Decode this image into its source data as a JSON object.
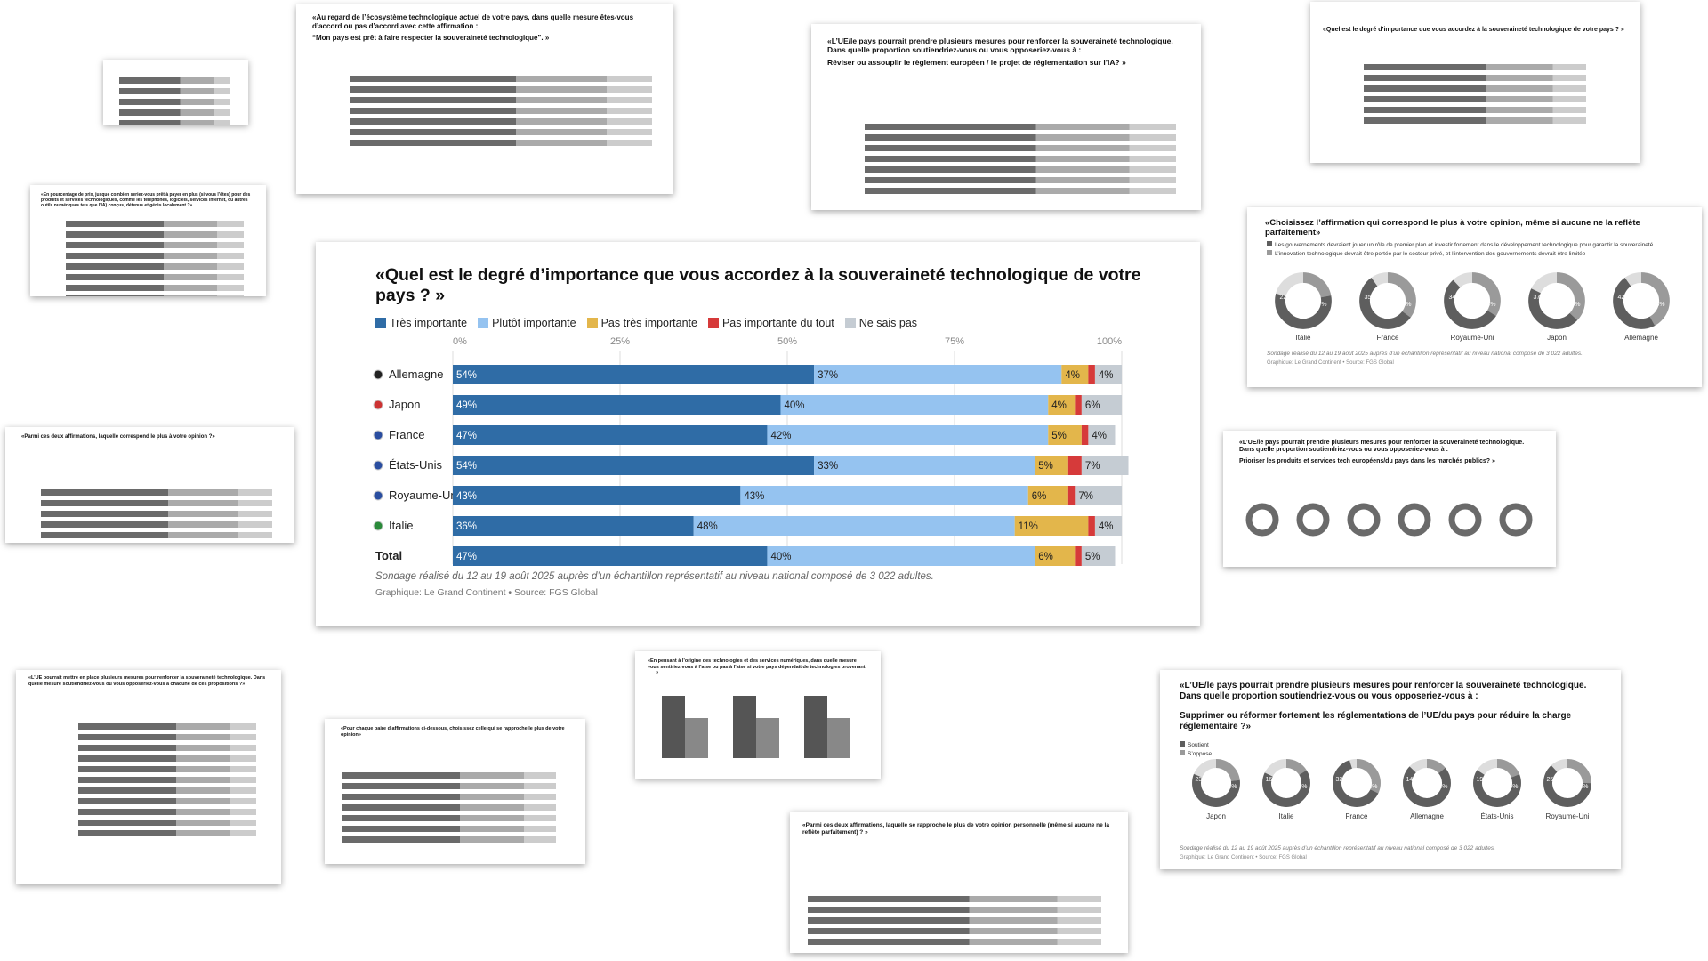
{
  "chart_data": {
    "type": "bar",
    "orientation": "horizontal",
    "stacked": true,
    "title": "«Quel est le degré d’importance que vous accordez à la souveraineté technologique de votre pays ? »",
    "categories": [
      "Allemagne",
      "Japon",
      "France",
      "États-Unis",
      "Royaume-Uni",
      "Italie",
      "Total"
    ],
    "series": [
      {
        "name": "Très importante",
        "color": "#2f6ca6",
        "values": [
          54,
          49,
          47,
          54,
          43,
          36,
          47
        ],
        "value_labels": [
          "54%",
          "49%",
          "47%",
          "54%",
          "43%",
          "36%",
          "47%"
        ]
      },
      {
        "name": "Plutôt importante",
        "color": "#95c3f0",
        "values": [
          37,
          40,
          42,
          33,
          43,
          48,
          40
        ],
        "value_labels": [
          "37%",
          "40%",
          "42%",
          "33%",
          "43%",
          "48%",
          "40%"
        ]
      },
      {
        "name": "Pas très importante",
        "color": "#e3b64b",
        "values": [
          4,
          4,
          5,
          5,
          6,
          11,
          6
        ],
        "value_labels": [
          "4%",
          "4%",
          "5%",
          "5%",
          "6%",
          "11%",
          "6%"
        ]
      },
      {
        "name": "Pas importante du tout",
        "color": "#d63a3a",
        "values": [
          1,
          1,
          1,
          2,
          1,
          1,
          1
        ]
      },
      {
        "name": "Ne sais pas",
        "color": "#c5ccd3",
        "values": [
          4,
          6,
          4,
          7,
          7,
          4,
          5
        ],
        "value_labels": [
          "4%",
          "6%",
          "4%",
          "7%",
          "7%",
          "4%",
          "5%"
        ]
      }
    ],
    "xlim": [
      0,
      100
    ],
    "xticks": [
      {
        "value": 0,
        "label": "0%"
      },
      {
        "value": 25,
        "label": "25%"
      },
      {
        "value": 50,
        "label": "50%"
      },
      {
        "value": 75,
        "label": "75%"
      },
      {
        "value": 100,
        "label": "100%"
      }
    ],
    "grid": true,
    "note": "Sondage réalisé du 12 au 19 août 2025 auprès d’un échantillon représentatif au niveau national composé de 3 022 adultes.",
    "source": "Graphique: Le Grand Continent • Source: FGS Global"
  },
  "cards": [
    {
      "title": "«Au regard de l’écosystème technologique actuel de votre pays, dans quelle mesure êtes-vous d’accord ou pas d’accord avec cette affirmation :",
      "subtitle": "“Mon pays est prêt à faire respecter la souveraineté technologique”. »"
    },
    {
      "title": "«L’UE/le pays pourrait prendre plusieurs mesures pour renforcer la souveraineté technologique. Dans quelle proportion soutiendriez-vous ou vous opposeriez-vous à :",
      "subtitle": "Réviser ou assouplir le règlement européen / le projet de réglementation sur l’IA? »"
    },
    {
      "title": "«Quel est le degré d’importance que vous accordez à la souveraineté technologique de votre pays ? »"
    },
    {
      "title": "«En pourcentage de prix, jusque combien seriez-vous prêt à payer en plus (si vous l’êtes) pour des produits et services technologiques, comme les téléphones, logiciels, services internet, ou autres outils numériques tels que l’IA) conçus, détenus et gérés localement ?»"
    },
    {
      "title": "«Choisissez l’affirmation qui correspond le plus à votre opinion, même si aucune ne la reflète parfaitement»",
      "categories": [
        "Italie",
        "France",
        "Royaume-Uni",
        "Japon",
        "Allemagne"
      ],
      "series": [
        {
          "name": "Les gouvernements devraient jouer un rôle de premier plan et investir fortement dans le développement technologique pour garantir la souveraineté",
          "color": "#5e5e5e",
          "values": [
            57,
            55,
            54,
            45,
            48
          ],
          "value_labels": [
            "57%",
            "55%",
            "54%",
            "45%",
            "48%"
          ]
        },
        {
          "name": "L’innovation technologique devrait être portée par le secteur privé, et l’intervention des gouvernements devrait être limitée",
          "color": "#9a9a9a",
          "values": [
            22,
            35,
            34,
            37,
            42
          ],
          "value_labels": [
            "22%",
            "35%",
            "34%",
            "37%",
            "42%"
          ]
        }
      ],
      "note": "Sondage réalisé du 12 au 19 août 2025 auprès d’un échantillon représentatif au niveau national composé de 3 022 adultes.",
      "source": "Graphique: Le Grand Continent • Source: FGS Global"
    },
    {
      "title": "«Parmi ces deux affirmations, laquelle correspond le plus à votre opinion ?»"
    },
    {
      "title": "«L’UE/le pays pourrait prendre plusieurs mesures pour renforcer la souveraineté technologique. Dans quelle proportion soutiendriez-vous ou vous opposeriez-vous à :",
      "subtitle": "Prioriser les produits et services tech européens/du pays dans les marchés publics? »"
    },
    {
      "title": "«L’UE pourrait mettre en place plusieurs mesures pour renforcer la souveraineté technologique. Dans quelle mesure soutiendriez-vous ou vous opposeriez-vous à chacune de ces propositions ?»"
    },
    {
      "title": "«Pour chaque paire d’affirmations ci-dessous, choisissez celle qui se rapproche le plus de votre opinion»"
    },
    {
      "title": "«En pensant à l’origine des technologies et des services numériques, dans quelle mesure vous sentiriez-vous à l’aise ou pas à l’aise si votre pays dépendait de technologies provenant ___»"
    },
    {
      "title": "«L’UE/le pays pourrait prendre plusieurs mesures pour renforcer la souveraineté technologique. Dans quelle proportion soutiendriez-vous ou vous opposeriez-vous à :",
      "subtitle": "Supprimer ou réformer fortement les réglementations de l’UE/du pays pour réduire la charge réglementaire ?»",
      "categories": [
        "Japon",
        "Italie",
        "France",
        "Allemagne",
        "États-Unis",
        "Royaume-Uni"
      ],
      "series": [
        {
          "name": "Soutient",
          "color": "#5e5e5e",
          "values": [
            58,
            66,
            63,
            73,
            65,
            63
          ],
          "value_labels": [
            "58%",
            "66%",
            "63%",
            "73%",
            "65%",
            "63%"
          ]
        },
        {
          "name": "S’oppose",
          "color": "#9a9a9a",
          "values": [
            23,
            16,
            32,
            14,
            19,
            25
          ],
          "value_labels": [
            "23%",
            "16%",
            "32%",
            "14%",
            "19%",
            "25%"
          ]
        }
      ],
      "note": "Sondage réalisé du 12 au 19 août 2025 auprès d’un échantillon représentatif au niveau national composé de 3 022 adultes.",
      "source": "Graphique: Le Grand Continent • Source: FGS Global"
    },
    {
      "title": "«Parmi ces deux affirmations, laquelle se rapproche le plus de votre opinion personnelle (même si aucune ne la reflète parfaitement) ? »"
    }
  ]
}
